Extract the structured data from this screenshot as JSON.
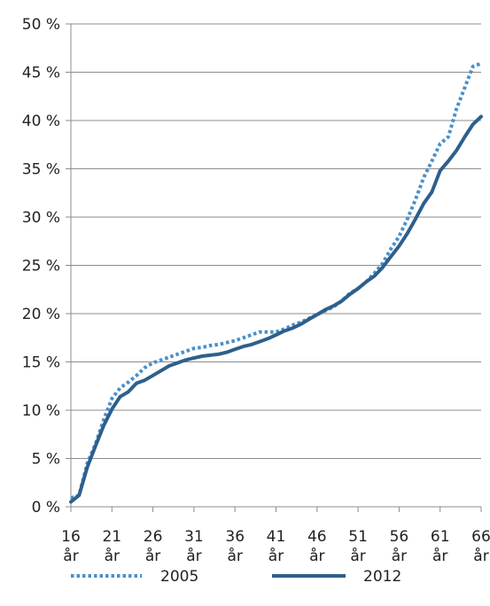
{
  "chart_data": {
    "type": "line",
    "title": "",
    "xlabel": "",
    "ylabel": "",
    "ylim": [
      0,
      50
    ],
    "xlim": [
      16,
      66
    ],
    "y_ticks": [
      0,
      5,
      10,
      15,
      20,
      25,
      30,
      35,
      40,
      45,
      50
    ],
    "y_tick_labels": [
      "0 %",
      "5 %",
      "10 %",
      "15 %",
      "20 %",
      "25 %",
      "30 %",
      "35 %",
      "40 %",
      "45 %",
      "50 %"
    ],
    "x_ticks": [
      16,
      21,
      26,
      31,
      36,
      41,
      46,
      51,
      56,
      61,
      66
    ],
    "x_tick_labels": [
      {
        "num": "16",
        "unit": "år"
      },
      {
        "num": "21",
        "unit": "år"
      },
      {
        "num": "26",
        "unit": "år"
      },
      {
        "num": "31",
        "unit": "år"
      },
      {
        "num": "36",
        "unit": "år"
      },
      {
        "num": "41",
        "unit": "år"
      },
      {
        "num": "46",
        "unit": "år"
      },
      {
        "num": "51",
        "unit": "år"
      },
      {
        "num": "56",
        "unit": "år"
      },
      {
        "num": "61",
        "unit": "år"
      },
      {
        "num": "66",
        "unit": "år"
      }
    ],
    "grid": "horizontal",
    "legend_position": "bottom",
    "x": [
      16,
      17,
      18,
      19,
      20,
      21,
      22,
      23,
      24,
      25,
      26,
      27,
      28,
      29,
      30,
      31,
      32,
      33,
      34,
      35,
      36,
      37,
      38,
      39,
      40,
      41,
      42,
      43,
      44,
      45,
      46,
      47,
      48,
      49,
      50,
      51,
      52,
      53,
      54,
      55,
      56,
      57,
      58,
      59,
      60,
      61,
      62,
      63,
      64,
      65,
      66
    ],
    "series": [
      {
        "name": "2005",
        "color": "#4a90c8",
        "style": "dotted",
        "values": [
          0.9,
          1.2,
          4.5,
          6.5,
          9.0,
          11.2,
          12.3,
          12.9,
          13.6,
          14.4,
          14.9,
          15.2,
          15.5,
          15.8,
          16.1,
          16.4,
          16.5,
          16.7,
          16.8,
          17.0,
          17.2,
          17.5,
          17.8,
          18.1,
          18.1,
          18.1,
          18.4,
          18.8,
          19.1,
          19.5,
          19.9,
          20.3,
          20.7,
          21.3,
          22.1,
          22.6,
          23.3,
          24.2,
          25.2,
          26.7,
          28.0,
          29.8,
          31.8,
          34.1,
          35.8,
          37.6,
          38.3,
          41.2,
          43.4,
          45.6,
          45.9
        ]
      },
      {
        "name": "2012",
        "color": "#2e5f8c",
        "style": "solid",
        "values": [
          0.5,
          1.2,
          4.1,
          6.3,
          8.4,
          10.1,
          11.4,
          11.9,
          12.8,
          13.1,
          13.6,
          14.1,
          14.6,
          14.9,
          15.2,
          15.4,
          15.6,
          15.7,
          15.8,
          16.0,
          16.3,
          16.6,
          16.8,
          17.1,
          17.4,
          17.8,
          18.2,
          18.5,
          18.9,
          19.4,
          19.9,
          20.4,
          20.8,
          21.3,
          22.0,
          22.6,
          23.3,
          23.9,
          24.8,
          25.9,
          27.0,
          28.3,
          29.8,
          31.4,
          32.6,
          34.8,
          35.8,
          36.9,
          38.3,
          39.6,
          40.4
        ]
      }
    ]
  }
}
